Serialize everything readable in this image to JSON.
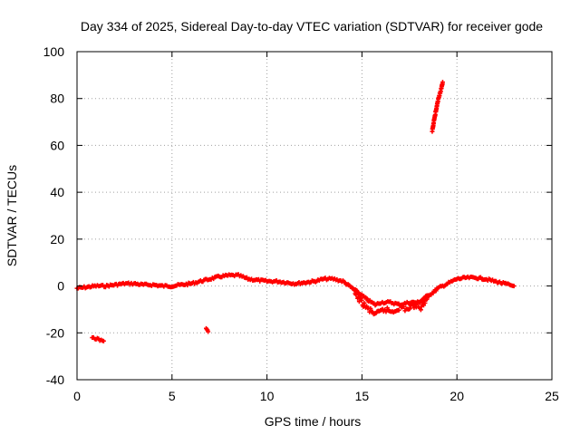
{
  "chart_data": {
    "type": "scatter",
    "title": "Day 334 of 2025, Sidereal Day-to-day VTEC variation (SDTVAR) for receiver gode",
    "xlabel": "GPS time / hours",
    "ylabel": "SDTVAR / TECUs",
    "xlim": [
      0,
      25
    ],
    "ylim": [
      -40,
      100
    ],
    "xticks": [
      0,
      5,
      10,
      15,
      20,
      25
    ],
    "yticks": [
      -40,
      -20,
      0,
      20,
      40,
      60,
      80,
      100
    ],
    "grid": true,
    "marker_color": "#ff0000",
    "series": [
      {
        "name": "SDTVAR main trace",
        "x": [
          0.0,
          0.5,
          1.0,
          1.5,
          2.0,
          2.5,
          3.0,
          3.5,
          4.0,
          4.5,
          5.0,
          5.5,
          6.0,
          6.5,
          7.0,
          7.5,
          8.0,
          8.5,
          9.0,
          9.5,
          10.0,
          10.5,
          11.0,
          11.5,
          12.0,
          12.5,
          13.0,
          13.5,
          14.0,
          14.5,
          15.0,
          15.3,
          15.7,
          16.0,
          16.5,
          17.0,
          17.5,
          18.0,
          18.3,
          18.7,
          19.0,
          19.5,
          20.0,
          20.5,
          21.0,
          21.5,
          22.0,
          22.5,
          23.0
        ],
        "y": [
          -1,
          -0.5,
          0,
          0,
          0.5,
          1,
          1,
          0.5,
          0.5,
          0,
          0,
          0.5,
          1,
          2,
          3,
          4,
          4.5,
          4.5,
          3,
          2.5,
          2,
          2,
          1.5,
          1,
          1.5,
          2,
          3,
          3,
          2,
          -1,
          -4,
          -6,
          -8,
          -7,
          -7,
          -8,
          -7,
          -7,
          -5,
          -3,
          -1,
          1,
          3,
          3.5,
          3.5,
          3,
          2,
          1,
          0
        ]
      },
      {
        "name": "SDTVAR spread",
        "x": [
          14.6,
          14.9,
          15.2,
          15.5,
          15.8,
          16.2,
          16.6,
          17.0,
          17.4,
          17.8,
          18.1,
          18.5
        ],
        "y": [
          -3,
          -6,
          -9,
          -11,
          -12,
          -10,
          -11,
          -9,
          -10,
          -8,
          -9,
          -4
        ]
      },
      {
        "name": "SDTVAR isolated segment 1",
        "x": [
          0.8,
          1.0,
          1.2,
          1.4
        ],
        "y": [
          -22,
          -22.5,
          -23,
          -23.5
        ]
      },
      {
        "name": "SDTVAR isolated segment 2",
        "x": [
          6.8,
          6.9
        ],
        "y": [
          -18.5,
          -19.5
        ]
      },
      {
        "name": "SDTVAR high segment",
        "x": [
          18.7,
          18.8,
          18.9,
          19.0,
          19.1,
          19.2,
          19.25
        ],
        "y": [
          66,
          71,
          75,
          79,
          82,
          85,
          87
        ]
      }
    ]
  }
}
